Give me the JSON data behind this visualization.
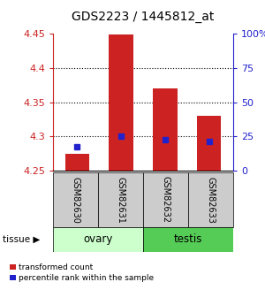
{
  "title": "GDS2223 / 1445812_at",
  "samples": [
    "GSM82630",
    "GSM82631",
    "GSM82632",
    "GSM82633"
  ],
  "ylim_left": [
    4.25,
    4.45
  ],
  "ylim_right": [
    0,
    100
  ],
  "yticks_left": [
    4.25,
    4.3,
    4.35,
    4.4,
    4.45
  ],
  "yticks_right": [
    0,
    25,
    50,
    75,
    100
  ],
  "ytick_labels_right": [
    "0",
    "25",
    "50",
    "75",
    "100%"
  ],
  "red_values": [
    4.275,
    4.449,
    4.37,
    4.33
  ],
  "blue_values": [
    4.285,
    4.3,
    4.295,
    4.293
  ],
  "bar_bottom": 4.25,
  "red_color": "#cc2222",
  "blue_color": "#2222cc",
  "ovary_color": "#ccffcc",
  "testis_color": "#55cc55",
  "sample_box_color": "#cccccc",
  "left_axis_color": "#cc2222",
  "right_axis_color": "#2222cc",
  "grid_yticks": [
    4.3,
    4.35,
    4.4
  ],
  "bar_width": 0.55
}
